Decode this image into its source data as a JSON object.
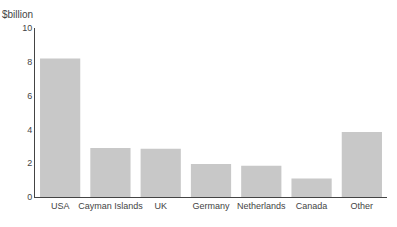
{
  "chart_data": {
    "type": "bar",
    "categories": [
      "USA",
      "Cayman Islands",
      "UK",
      "Germany",
      "Netherlands",
      "Canada",
      "Other"
    ],
    "values": [
      8.2,
      2.9,
      2.85,
      1.95,
      1.85,
      1.1,
      3.85
    ],
    "color": "#c8c8c8",
    "ylabel": "$billion",
    "ylim": [
      0,
      10
    ],
    "yticks": [
      0,
      2,
      4,
      6,
      8,
      10
    ],
    "grid": false
  }
}
